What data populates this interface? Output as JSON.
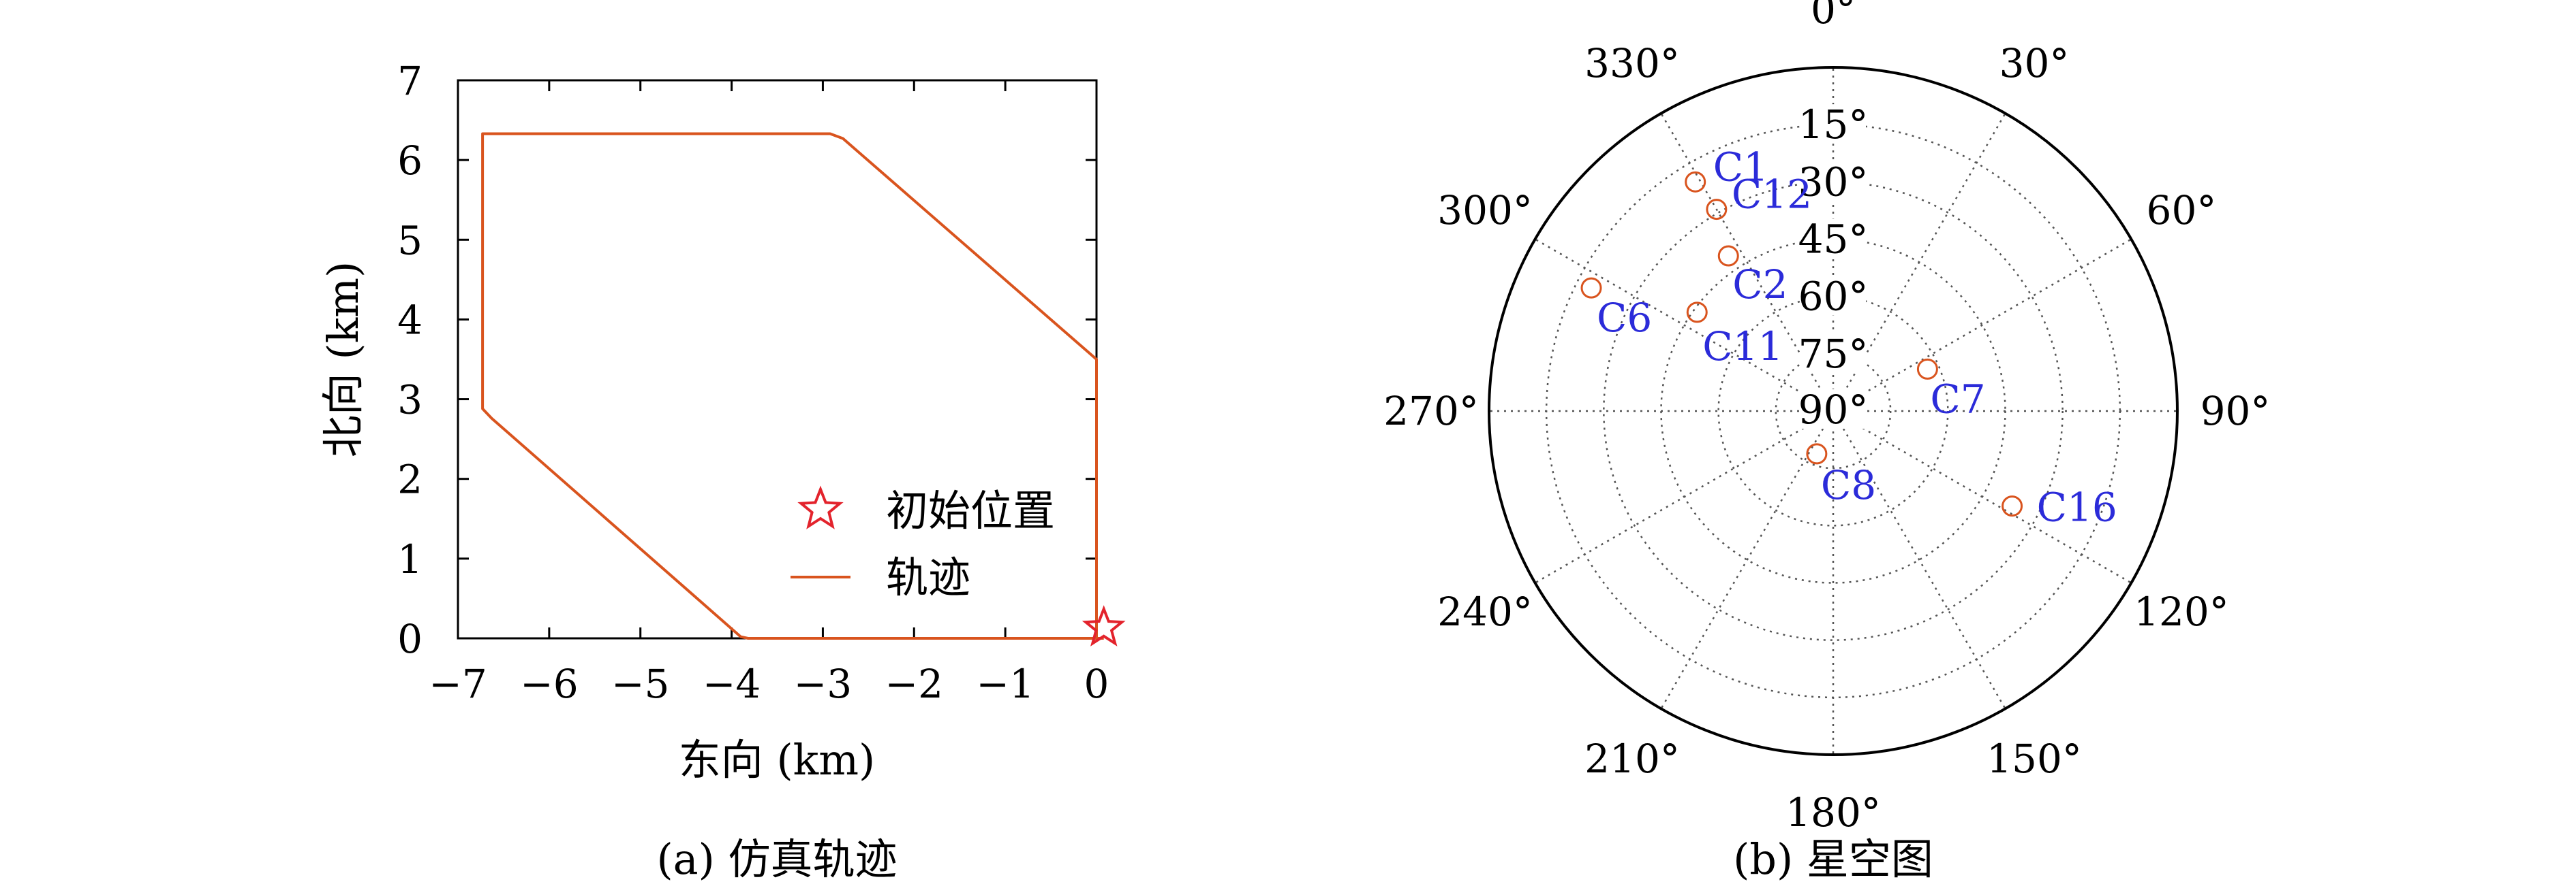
{
  "colors": {
    "trajectory": "#d9541e",
    "start_marker": "#e3232c",
    "satellite_marker": "#d9541e",
    "satellite_label": "#2b2bd9",
    "grid": "#555555",
    "axis": "#000000"
  },
  "chart_data": [
    {
      "type": "line",
      "caption": "(a) 仿真轨迹",
      "xlabel": "东向 (km)",
      "ylabel": "北向 (km)",
      "xlim": [
        -7,
        0
      ],
      "ylim": [
        0,
        7
      ],
      "xticks": [
        -7,
        -6,
        -5,
        -4,
        -3,
        -2,
        -1,
        0
      ],
      "xtick_labels": [
        "−7",
        "−6",
        "−5",
        "−4",
        "−3",
        "−2",
        "−1",
        "0"
      ],
      "yticks": [
        0,
        1,
        2,
        3,
        4,
        5,
        6,
        7
      ],
      "ytick_labels": [
        "0",
        "1",
        "2",
        "3",
        "4",
        "5",
        "6",
        "7"
      ],
      "legend_position": "bottom-right",
      "legend": [
        {
          "label": "初始位置",
          "marker": "star"
        },
        {
          "label": "轨迹",
          "marker": "line"
        }
      ],
      "series": [
        {
          "name": "轨迹",
          "x": [
            0.08,
            -3.82,
            -3.9,
            -6.63,
            -6.73,
            -6.73,
            -2.92,
            -2.78,
            0.0,
            0.0
          ],
          "y": [
            0.0,
            0.0,
            0.02,
            2.76,
            2.88,
            6.33,
            6.33,
            6.27,
            3.5,
            0.0
          ]
        }
      ],
      "start_point": {
        "name": "初始位置",
        "x": 0.08,
        "y": 0.13
      }
    },
    {
      "type": "polar-scatter",
      "caption": "(b) 星空图",
      "azimuth_labels": [
        "0°",
        "30°",
        "60°",
        "90°",
        "120°",
        "150°",
        "180°",
        "210°",
        "240°",
        "270°",
        "300°",
        "330°"
      ],
      "azimuth_values": [
        0,
        30,
        60,
        90,
        120,
        150,
        180,
        210,
        240,
        270,
        300,
        330
      ],
      "elevation_labels": [
        "15°",
        "30°",
        "45°",
        "60°",
        "75°",
        "90°"
      ],
      "elevation_values": [
        15,
        30,
        45,
        60,
        75,
        90
      ],
      "elevation_range": [
        0,
        90
      ],
      "satellites": [
        {
          "name": "C1",
          "azimuth": 329,
          "elevation": 20
        },
        {
          "name": "C12",
          "azimuth": 330,
          "elevation": 29
        },
        {
          "name": "C2",
          "azimuth": 326,
          "elevation": 41
        },
        {
          "name": "C6",
          "azimuth": 297,
          "elevation": 19
        },
        {
          "name": "C11",
          "azimuth": 306,
          "elevation": 46
        },
        {
          "name": "C7",
          "azimuth": 66,
          "elevation": 63
        },
        {
          "name": "C8",
          "azimuth": 201,
          "elevation": 78
        },
        {
          "name": "C16",
          "azimuth": 118,
          "elevation": 37
        }
      ]
    }
  ]
}
